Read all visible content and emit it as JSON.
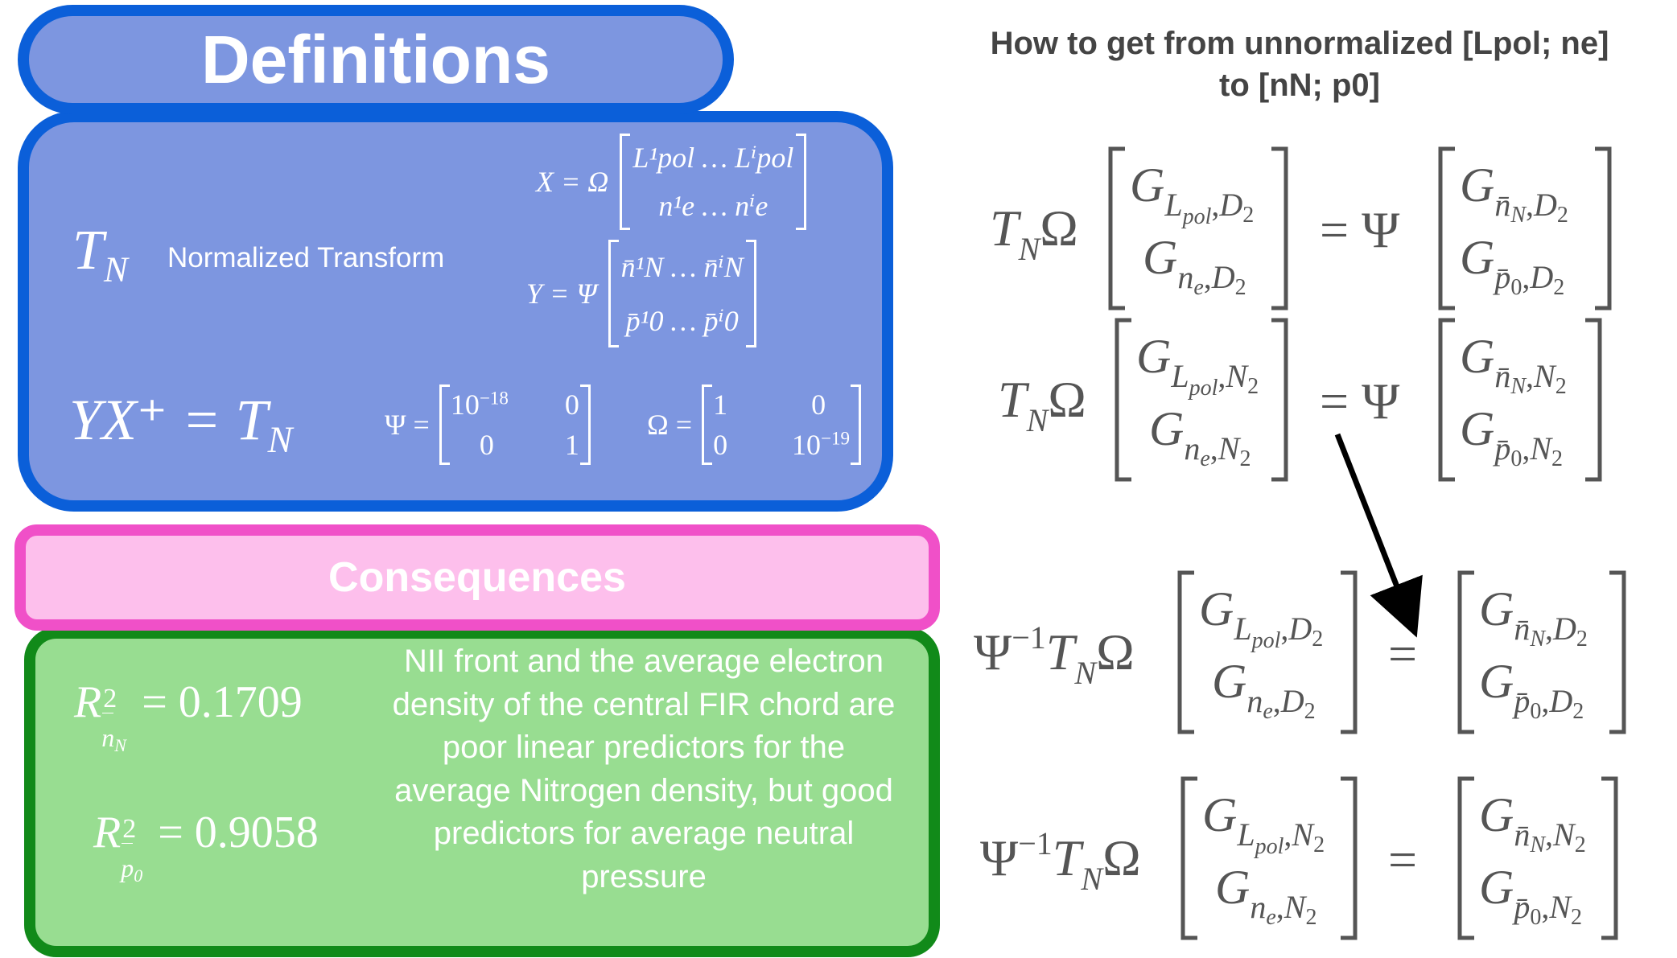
{
  "definitions": {
    "title": "Definitions",
    "tn_symbol": "T",
    "tn_sub": "N",
    "tn_label": "Normalized Transform",
    "x_def": {
      "lhs": "X = Ω",
      "r1": "L¹pol … Lⁱpol",
      "r2": "n¹e … nⁱe"
    },
    "y_def": {
      "lhs": "Y = Ψ",
      "r1": "n̄¹N … n̄ⁱN",
      "r2": "p̄¹0 … p̄ⁱ0"
    },
    "yx_eq": "YX⁺ = T",
    "yx_sub": "N",
    "psi_def": {
      "lhs": "Ψ =",
      "a11": "10",
      "a11_exp": "−18",
      "a12": "0",
      "a21": "0",
      "a22": "1"
    },
    "omega_def": {
      "lhs": "Ω =",
      "a11": "1",
      "a12": "0",
      "a21": "0",
      "a22": "10",
      "a22_exp": "−19"
    }
  },
  "consequences": {
    "title": "Consequences",
    "r2_nN": {
      "symbol": "R",
      "value": "= 0.1709"
    },
    "r2_p0": {
      "symbol": "R",
      "value": "= 0.9058"
    },
    "description": "NII front and the average electron density of the central FIR chord are poor linear predictors for the average Nitrogen density, but good predictors for average neutral pressure"
  },
  "right_panel": {
    "title_line1": "How to get from unnormalized [Lpol; ne]",
    "title_line2": "to [nN; p0]",
    "eq_lhs": "T",
    "eq_lhs_sub": "N",
    "omega": "Ω",
    "psi": "Ψ",
    "psi_inv_exp": "−1",
    "equals": "=",
    "G": "G",
    "D2": "D",
    "N2": "N",
    "two": "2"
  },
  "colors": {
    "definitions_fill": "#7d96e0",
    "definitions_border": "#0b5fd9",
    "consequences_fill": "#fdbfec",
    "consequences_border": "#f050c8",
    "green_fill": "#98dd91",
    "green_border": "#118a19",
    "equation_gray": "#555555",
    "arrow": "#000000"
  }
}
